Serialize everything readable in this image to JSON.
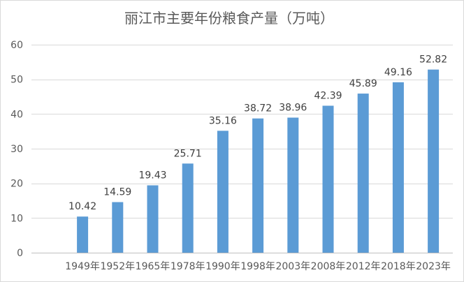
{
  "chart_data": {
    "type": "bar",
    "title": "丽江市主要年份粮食产量（万吨）",
    "xlabel": "",
    "ylabel": "",
    "categories": [
      "1949年",
      "1952年",
      "1965年",
      "1978年",
      "1990年",
      "1998年",
      "2003年",
      "2008年",
      "2012年",
      "2018年",
      "2023年"
    ],
    "values": [
      10.42,
      14.59,
      19.43,
      25.71,
      35.16,
      38.72,
      38.96,
      42.39,
      45.89,
      49.16,
      52.82
    ],
    "ylim": [
      0,
      60
    ],
    "yticks": [
      0,
      10,
      20,
      30,
      40,
      50,
      60
    ],
    "grid": true,
    "legend": "none",
    "data_labels": true
  },
  "colors": {
    "bar": "#5B9BD5",
    "grid": "#D9D9D9",
    "axis": "#BFBFBF",
    "border": "#D9D9D9",
    "text": "#595959",
    "data_label": "#404040"
  }
}
